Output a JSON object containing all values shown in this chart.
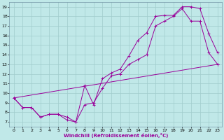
{
  "bg_color": "#c0e8e8",
  "grid_color": "#a0cccc",
  "line_color": "#990099",
  "xlabel": "Windchill (Refroidissement éolien,°C)",
  "xlim": [
    -0.5,
    23.5
  ],
  "ylim": [
    6.5,
    19.5
  ],
  "xticks": [
    0,
    1,
    2,
    3,
    4,
    5,
    6,
    7,
    8,
    9,
    10,
    11,
    12,
    13,
    14,
    15,
    16,
    17,
    18,
    19,
    20,
    21,
    22,
    23
  ],
  "yticks": [
    7,
    8,
    9,
    10,
    11,
    12,
    13,
    14,
    15,
    16,
    17,
    18,
    19
  ],
  "curve1_x": [
    0,
    1,
    2,
    3,
    4,
    5,
    6,
    7,
    8,
    9,
    10,
    11,
    12,
    13,
    14,
    15,
    16,
    17,
    18,
    19,
    20,
    21,
    22,
    23
  ],
  "curve1_y": [
    9.5,
    8.5,
    8.5,
    7.5,
    7.8,
    7.8,
    7.2,
    7.0,
    10.8,
    8.8,
    11.5,
    12.1,
    12.5,
    13.9,
    15.5,
    16.3,
    18.0,
    18.1,
    18.1,
    19.0,
    19.0,
    18.8,
    16.2,
    14.2
  ],
  "curve2_x": [
    0,
    1,
    2,
    3,
    4,
    5,
    6,
    7,
    8,
    9,
    10,
    11,
    12,
    13,
    14,
    15,
    16,
    17,
    18,
    19,
    20,
    21,
    22,
    23
  ],
  "curve2_y": [
    9.5,
    8.5,
    8.5,
    7.5,
    7.8,
    7.8,
    7.5,
    7.0,
    8.8,
    9.0,
    10.5,
    11.8,
    12.0,
    13.0,
    13.5,
    14.0,
    17.0,
    17.5,
    18.0,
    18.8,
    17.5,
    17.5,
    14.2,
    13.0
  ],
  "curve3_x": [
    0,
    23
  ],
  "curve3_y": [
    9.5,
    13.0
  ]
}
